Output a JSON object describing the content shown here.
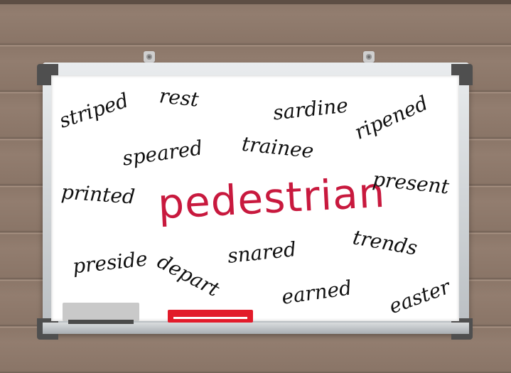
{
  "board": {
    "main_word": "pedestrian",
    "main_color": "#c8193e",
    "words": {
      "striped": "striped",
      "rest": "rest",
      "sardine": "sardine",
      "ripened": "ripened",
      "speared": "speared",
      "trainee": "trainee",
      "printed": "printed",
      "present": "present",
      "preside": "preside",
      "depart": "depart",
      "snared": "snared",
      "trends": "trends",
      "earned": "earned",
      "easter": "easter"
    }
  },
  "colors": {
    "wall": "#8f7a6c",
    "marker": "#e21b2a",
    "eraser": "#c9c9c9"
  }
}
